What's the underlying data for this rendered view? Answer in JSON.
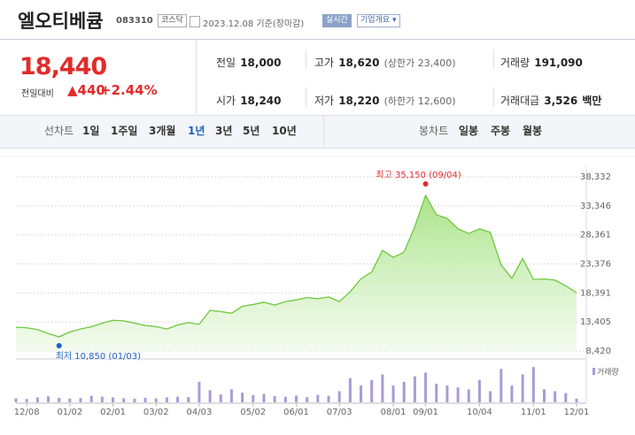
{
  "header": {
    "name": "엘오티베큠",
    "code": "083310",
    "market": "코스닥",
    "date": "2023.12.08 기준(장마감)",
    "badge": "실시간",
    "button": "기업개요"
  },
  "quote": {
    "price": "18,440",
    "change_label": "전일대비",
    "change": "▲440",
    "rate": "+2.44%"
  },
  "stats": [
    {
      "label": "전일",
      "value": "18,000"
    },
    {
      "label": "고가",
      "value": "18,620",
      "note": "(상한가 23,400)"
    },
    {
      "label": "거래량",
      "value": "191,090"
    },
    {
      "label": "시가",
      "value": "18,240"
    },
    {
      "label": "저가",
      "value": "18,220",
      "note": "(하한가 12,600)"
    },
    {
      "label": "거래대금",
      "value": "3,526",
      "note": "백만"
    }
  ],
  "tabs": {
    "line_label": "선차트",
    "line_periods": [
      "1일",
      "1주일",
      "3개월",
      "1년",
      "3년",
      "5년",
      "10년"
    ],
    "selected_period": 3,
    "candle_label": "봉차트",
    "candle_periods": [
      "일봉",
      "주봉",
      "월봉"
    ]
  },
  "chart_data": {
    "type": "area",
    "color": "#6cc93a",
    "categories": [
      null,
      "12/08",
      null,
      null,
      null,
      "01/02",
      null,
      null,
      null,
      "02/01",
      null,
      null,
      null,
      "03/02",
      null,
      null,
      null,
      "04/03",
      null,
      null,
      null,
      null,
      "05/02",
      null,
      null,
      null,
      "06/01",
      null,
      null,
      null,
      "07/03",
      null,
      null,
      null,
      null,
      "08/01",
      null,
      null,
      "09/01",
      null,
      null,
      null,
      null,
      "10/04",
      null,
      null,
      null,
      null,
      "11/01",
      null,
      null,
      null,
      "12/01"
    ],
    "values": [
      12500,
      12400,
      12100,
      11400,
      10850,
      11700,
      12200,
      12600,
      13200,
      13700,
      13600,
      13200,
      12800,
      12600,
      12200,
      12900,
      13300,
      13000,
      15400,
      15200,
      14900,
      16100,
      16400,
      16800,
      16300,
      16900,
      17200,
      17600,
      17400,
      17700,
      16900,
      18600,
      20800,
      22000,
      25700,
      24500,
      25400,
      29800,
      35150,
      31800,
      31200,
      29400,
      28600,
      29400,
      28800,
      23200,
      20900,
      24300,
      20700,
      20800,
      20600,
      19600,
      18440
    ],
    "ylim": [
      8420,
      38332
    ],
    "yticks": [
      {
        "value": 8420,
        "label": "8,420"
      },
      {
        "value": 13405,
        "label": "13,405"
      },
      {
        "value": 18391,
        "label": "18,391"
      },
      {
        "value": 23376,
        "label": "23,376"
      },
      {
        "value": 28361,
        "label": "28,361"
      },
      {
        "value": 33346,
        "label": "33,346"
      },
      {
        "value": 38332,
        "label": "38,332"
      }
    ],
    "grid": true,
    "max_label": "최고 35,150 (09/04)",
    "min_label": "최저 10,850 (01/03)",
    "volume": {
      "name": "거래량",
      "color": "#a99bd6",
      "ylim": [
        0,
        2000000
      ],
      "values": [
        210000,
        180000,
        260000,
        320000,
        240000,
        200000,
        230000,
        350000,
        300000,
        260000,
        220000,
        190000,
        240000,
        210000,
        260000,
        300000,
        280000,
        1100000,
        650000,
        420000,
        700000,
        520000,
        380000,
        450000,
        330000,
        300000,
        360000,
        280000,
        400000,
        350000,
        600000,
        1300000,
        900000,
        1200000,
        1500000,
        900000,
        1100000,
        1400000,
        1600000,
        1000000,
        900000,
        800000,
        700000,
        1200000,
        600000,
        1800000,
        900000,
        1500000,
        1900000,
        700000,
        600000,
        500000,
        191090
      ]
    }
  }
}
